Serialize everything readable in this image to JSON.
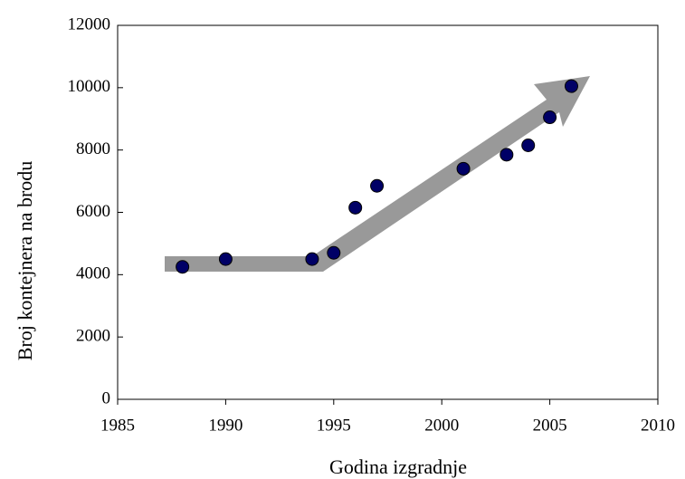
{
  "chart_data": {
    "type": "scatter",
    "x_label": "Godina izgradnje",
    "y_label": "Broj kontejnera na brodu",
    "x": [
      1988,
      1990,
      1994,
      1995,
      1996,
      1997,
      2001,
      2003,
      2004,
      2005,
      2006
    ],
    "values": [
      4250,
      4500,
      4500,
      4700,
      6150,
      6850,
      7400,
      7850,
      8150,
      9050,
      10050
    ],
    "color": "#000066",
    "xlim": [
      1985,
      2010
    ],
    "xticks": [
      1985,
      1990,
      1995,
      2000,
      2005,
      2010
    ],
    "ylim": [
      0,
      12000
    ],
    "yticks": [
      0,
      2000,
      4000,
      6000,
      8000,
      10000,
      12000
    ]
  }
}
